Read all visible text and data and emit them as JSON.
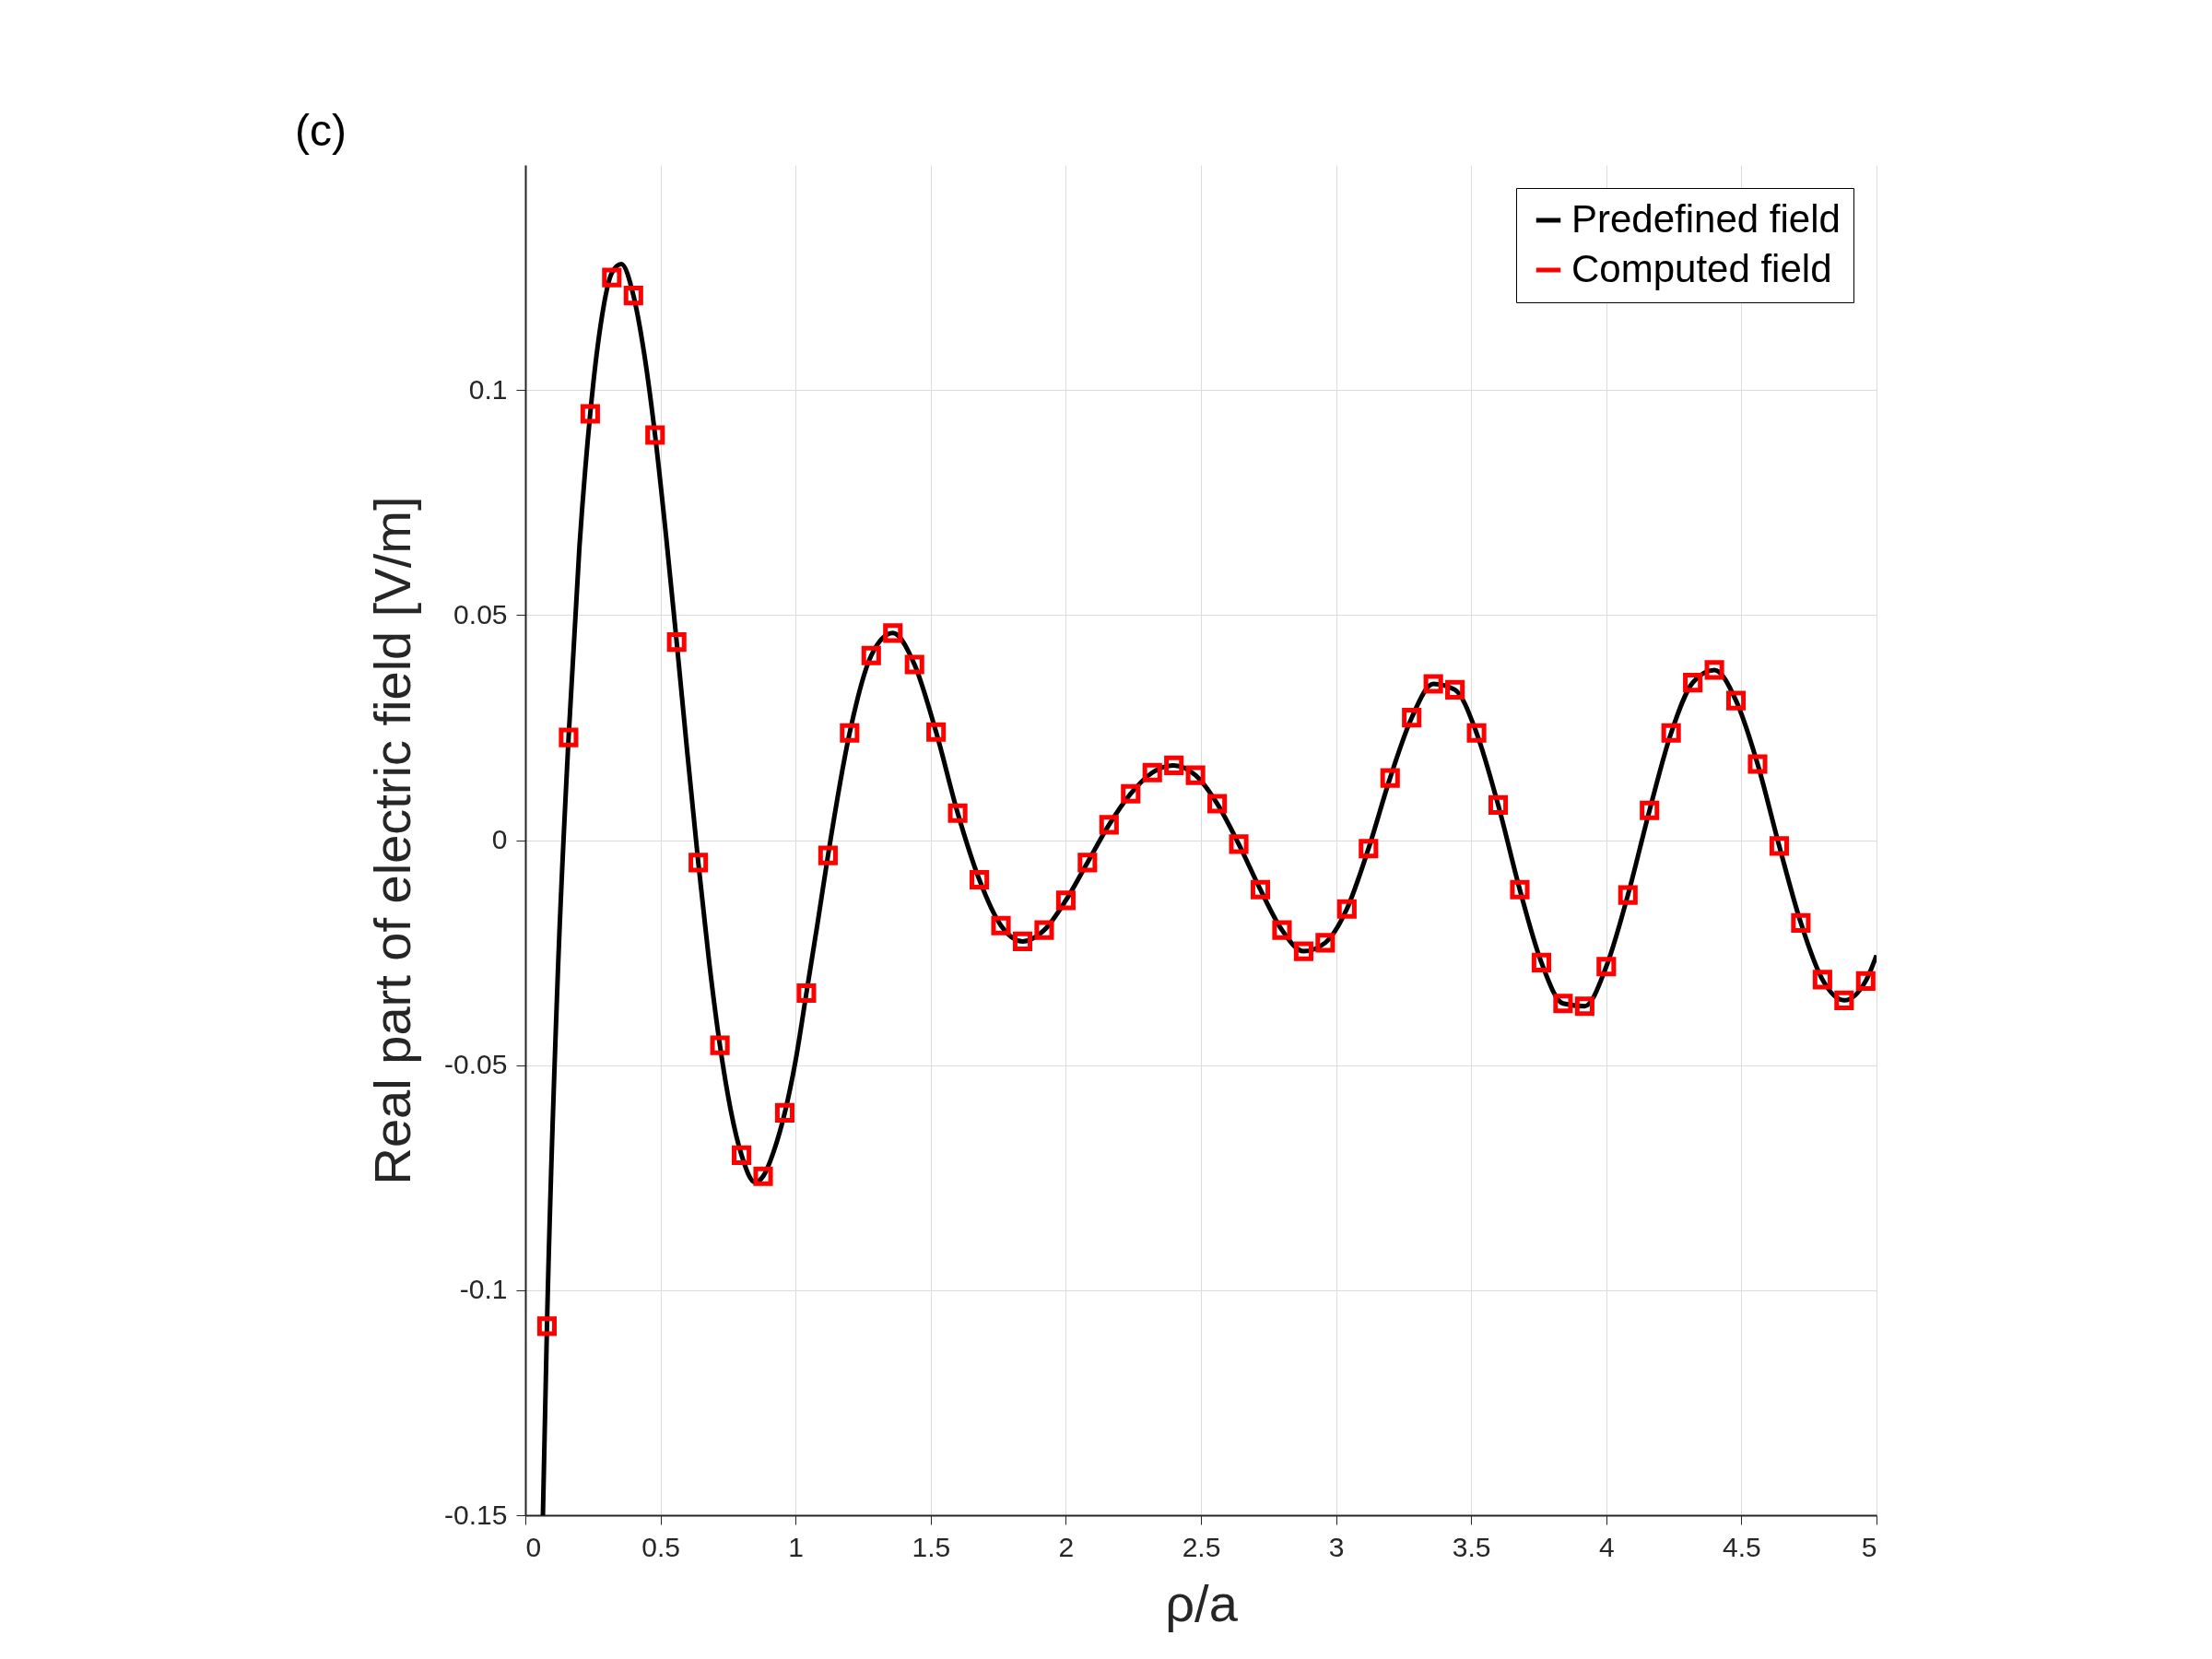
{
  "chart_data": {
    "type": "line",
    "title": "(c)",
    "xlabel": "ρ/a",
    "ylabel": "Real part of electric field [V/m]",
    "xlim": [
      0,
      5
    ],
    "ylim": [
      -0.15,
      0.15
    ],
    "xticks": [
      0,
      0.5,
      1,
      1.5,
      2,
      2.5,
      3,
      3.5,
      4,
      4.5,
      5
    ],
    "yticks": [
      -0.15,
      -0.1,
      -0.05,
      0,
      0.05,
      0.1
    ],
    "grid": true,
    "legend": "top right",
    "series": [
      {
        "name": "Predefined field",
        "color": "#000000",
        "line_style": "solid",
        "x": [
          0.065,
          0.08,
          0.12,
          0.16,
          0.2,
          0.24,
          0.28,
          0.32,
          0.355,
          0.4,
          0.44,
          0.48,
          0.52,
          0.56,
          0.6,
          0.64,
          0.68,
          0.72,
          0.76,
          0.8,
          0.85,
          0.88,
          0.92,
          0.96,
          1.0,
          1.04,
          1.08,
          1.12,
          1.2,
          1.28,
          1.36,
          1.44,
          1.52,
          1.6,
          1.68,
          1.76,
          1.84,
          1.92,
          2.0,
          2.08,
          2.16,
          2.24,
          2.32,
          2.4,
          2.48,
          2.56,
          2.64,
          2.72,
          2.8,
          2.88,
          2.96,
          3.04,
          3.12,
          3.2,
          3.28,
          3.36,
          3.44,
          3.52,
          3.6,
          3.68,
          3.76,
          3.84,
          3.92,
          4.0,
          4.08,
          4.16,
          4.24,
          4.32,
          4.4,
          4.48,
          4.56,
          4.64,
          4.72,
          4.8,
          4.88,
          4.96,
          5.0
        ],
        "values": [
          -0.15,
          -0.108,
          -0.03,
          0.0228,
          0.065,
          0.0947,
          0.115,
          0.126,
          0.128,
          0.121,
          0.108,
          0.09,
          0.068,
          0.044,
          0.019,
          -0.005,
          -0.027,
          -0.0456,
          -0.06,
          -0.07,
          -0.076,
          -0.0747,
          -0.069,
          -0.0606,
          -0.049,
          -0.034,
          -0.019,
          -0.0034,
          0.0238,
          0.041,
          0.046,
          0.039,
          0.024,
          0.006,
          -0.0088,
          -0.019,
          -0.0225,
          -0.02,
          -0.0134,
          -0.005,
          0.0034,
          0.0103,
          0.015,
          0.0166,
          0.0144,
          0.0081,
          -0.0009,
          -0.011,
          -0.02,
          -0.0247,
          -0.0228,
          -0.0153,
          -0.0019,
          0.0138,
          0.0272,
          0.0347,
          0.0334,
          0.0238,
          0.0078,
          -0.011,
          -0.0272,
          -0.0363,
          -0.0369,
          -0.0281,
          -0.0122,
          0.0066,
          0.0238,
          0.035,
          0.0378,
          0.031,
          0.0169,
          -0.0013,
          -0.0184,
          -0.031,
          -0.0356,
          -0.0313,
          -0.0256
        ]
      },
      {
        "name": "Computed field",
        "type": "scatter",
        "color": "#ff0000",
        "marker": "square",
        "x": [
          0.08,
          0.16,
          0.24,
          0.32,
          0.4,
          0.48,
          0.56,
          0.64,
          0.72,
          0.8,
          0.88,
          0.96,
          1.04,
          1.12,
          1.2,
          1.28,
          1.36,
          1.44,
          1.52,
          1.6,
          1.68,
          1.76,
          1.84,
          1.92,
          2.0,
          2.08,
          2.16,
          2.24,
          2.32,
          2.4,
          2.48,
          2.56,
          2.64,
          2.72,
          2.8,
          2.88,
          2.96,
          3.04,
          3.12,
          3.2,
          3.28,
          3.36,
          3.44,
          3.52,
          3.6,
          3.68,
          3.76,
          3.84,
          3.92,
          4.0,
          4.08,
          4.16,
          4.24,
          4.32,
          4.4,
          4.48,
          4.56,
          4.64,
          4.72,
          4.8,
          4.88,
          4.96
        ],
        "values": [
          -0.108,
          0.0228,
          0.0947,
          0.125,
          0.121,
          0.09,
          0.044,
          -0.005,
          -0.0456,
          -0.07,
          -0.0747,
          -0.0606,
          -0.034,
          -0.0034,
          0.0238,
          0.041,
          0.046,
          0.039,
          0.024,
          0.006,
          -0.0088,
          -0.019,
          -0.0225,
          -0.02,
          -0.0134,
          -0.005,
          0.0034,
          0.0103,
          0.015,
          0.0166,
          0.0144,
          0.0081,
          -0.0009,
          -0.011,
          -0.02,
          -0.0247,
          -0.0228,
          -0.0153,
          -0.0019,
          0.0138,
          0.0272,
          0.0347,
          0.0334,
          0.0238,
          0.0078,
          -0.011,
          -0.0272,
          -0.0363,
          -0.0369,
          -0.0281,
          -0.0122,
          0.0066,
          0.0238,
          0.035,
          0.0378,
          0.031,
          0.0169,
          -0.0013,
          -0.0184,
          -0.031,
          -0.0356,
          -0.0313
        ]
      }
    ]
  }
}
